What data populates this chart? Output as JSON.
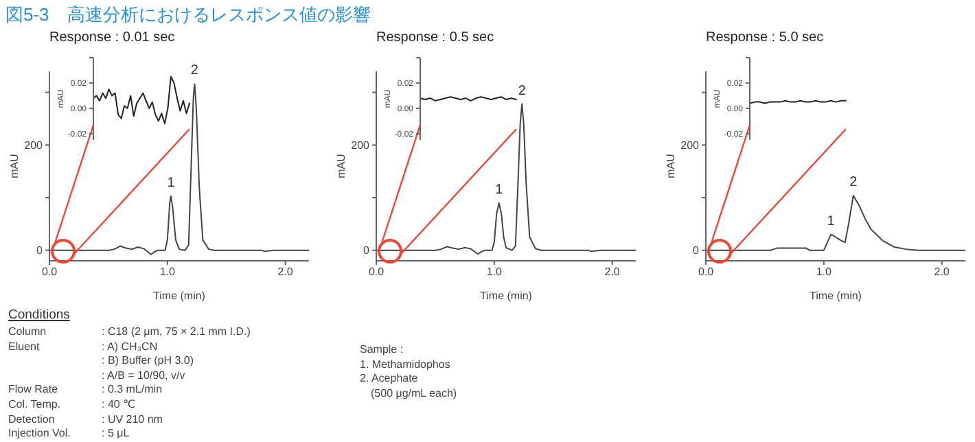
{
  "chart_data": [
    {
      "type": "other",
      "title": "図5-3　高速分析におけるレスポンス値の影響"
    },
    {
      "type": "line",
      "title": "Response : 0.01 sec",
      "xlabel": "Time (min)",
      "ylabel": "mAU",
      "xlim": [
        0,
        2.2
      ],
      "xticks": [
        {
          "value": 0,
          "label": "0.0"
        },
        {
          "value": 1,
          "label": "1.0"
        },
        {
          "value": 2,
          "label": "2.0"
        }
      ],
      "ylim": [
        -20,
        340
      ],
      "yticks": [
        0,
        {
          "value": 100,
          "label": null
        },
        200,
        {
          "value": 300,
          "label": null
        }
      ],
      "marker": "none",
      "x": [
        0,
        0.5,
        0.55,
        0.6,
        0.65,
        0.7,
        0.75,
        0.8,
        0.83,
        0.86,
        0.89,
        0.92,
        0.98,
        1.0,
        1.02,
        1.03,
        1.045,
        1.07,
        1.1,
        1.15,
        1.18,
        1.2,
        1.22,
        1.23,
        1.245,
        1.27,
        1.3,
        1.35,
        1.4,
        1.8,
        1.82,
        1.9,
        2.2
      ],
      "series": [
        {
          "color": "#444444",
          "values": [
            0,
            0,
            2,
            8,
            4,
            2,
            6,
            3,
            -2,
            -8,
            -3,
            0,
            0,
            20,
            90,
            103,
            80,
            20,
            2,
            0,
            10,
            150,
            290,
            316,
            270,
            120,
            20,
            2,
            0,
            0,
            -2,
            0,
            0
          ]
        }
      ],
      "annotations": [
        {
          "text": "1",
          "x": 1.03,
          "y": 103
        },
        {
          "text": "2",
          "x": 1.23,
          "y": 316
        }
      ]
    },
    {
      "type": "line",
      "ylabel": "mAU",
      "ylim": [
        -0.025,
        0.04
      ],
      "yticks": [
        {
          "value": 0.04,
          "label": null
        },
        0.02,
        {
          "value": 0,
          "label": "0.00"
        },
        -0.02
      ],
      "tick_labels": "y",
      "marker": "none",
      "categories": [
        null,
        null,
        null,
        null,
        null,
        null,
        null,
        null,
        null,
        null,
        null,
        null,
        null,
        null,
        null,
        null,
        null,
        null,
        null,
        null,
        null,
        null,
        null,
        null,
        null,
        null,
        null,
        null,
        null,
        null,
        null,
        null
      ],
      "series": [
        {
          "color": "#222222",
          "values": [
            0.008,
            0.01,
            0.006,
            0.012,
            0.008,
            0.015,
            0.01,
            0.012,
            -0.005,
            -0.008,
            0.002,
            0.0,
            0.01,
            -0.006,
            0.004,
            0.008,
            0.012,
            0.006,
            0.0,
            0.005,
            -0.005,
            -0.01,
            -0.004,
            -0.012,
            0.0,
            0.025,
            0.02,
            0.008,
            -0.002,
            0.006,
            -0.004,
            0.004
          ]
        }
      ]
    },
    {
      "type": "line",
      "title": "Response : 0.5 sec",
      "xlabel": "Time (min)",
      "ylabel": "mAU",
      "xlim": [
        0,
        2.2
      ],
      "xticks": [
        {
          "value": 0,
          "label": "0.0"
        },
        {
          "value": 1,
          "label": "1.0"
        },
        {
          "value": 2,
          "label": "2.0"
        }
      ],
      "ylim": [
        -20,
        340
      ],
      "yticks": [
        0,
        {
          "value": 100,
          "label": null
        },
        200,
        {
          "value": 300,
          "label": null
        }
      ],
      "marker": "none",
      "x": [
        0,
        0.5,
        0.55,
        0.6,
        0.65,
        0.7,
        0.75,
        0.8,
        0.83,
        0.86,
        0.89,
        0.92,
        0.98,
        1.0,
        1.02,
        1.04,
        1.06,
        1.08,
        1.1,
        1.15,
        1.18,
        1.2,
        1.22,
        1.235,
        1.25,
        1.27,
        1.3,
        1.35,
        1.4,
        1.8,
        1.82,
        1.9,
        2.2
      ],
      "series": [
        {
          "color": "#444444",
          "values": [
            0,
            0,
            2,
            7,
            4,
            2,
            5,
            3,
            -2,
            -7,
            -3,
            0,
            0,
            15,
            70,
            90,
            70,
            25,
            5,
            0,
            8,
            120,
            240,
            278,
            240,
            130,
            25,
            3,
            0,
            0,
            -2,
            0,
            0
          ]
        }
      ],
      "annotations": [
        {
          "text": "1",
          "x": 1.04,
          "y": 90
        },
        {
          "text": "2",
          "x": 1.235,
          "y": 278
        }
      ]
    },
    {
      "type": "line",
      "ylabel": "mAU",
      "ylim": [
        -0.025,
        0.04
      ],
      "yticks": [
        {
          "value": 0.04,
          "label": null
        },
        0.02,
        {
          "value": 0,
          "label": "0.00"
        },
        -0.02
      ],
      "tick_labels": "y",
      "marker": "none",
      "categories": [
        null,
        null,
        null,
        null,
        null,
        null,
        null,
        null,
        null,
        null,
        null,
        null,
        null,
        null,
        null,
        null,
        null,
        null,
        null,
        null
      ],
      "series": [
        {
          "color": "#222222",
          "values": [
            0.008,
            0.007,
            0.008,
            0.006,
            0.007,
            0.008,
            0.009,
            0.008,
            0.007,
            0.008,
            0.006,
            0.008,
            0.009,
            0.008,
            0.007,
            0.008,
            0.009,
            0.007,
            0.008,
            0.007
          ]
        }
      ]
    },
    {
      "type": "line",
      "title": "Response : 5.0 sec",
      "xlabel": "Time (min)",
      "ylabel": "mAU",
      "xlim": [
        0,
        2.2
      ],
      "xticks": [
        {
          "value": 0,
          "label": "0.0"
        },
        {
          "value": 1,
          "label": "1.0"
        },
        {
          "value": 2,
          "label": "2.0"
        }
      ],
      "ylim": [
        -20,
        340
      ],
      "yticks": [
        0,
        {
          "value": 100,
          "label": null
        },
        200,
        {
          "value": 300,
          "label": null
        }
      ],
      "marker": "none",
      "x": [
        0,
        0.55,
        0.6,
        0.85,
        0.88,
        1.0,
        1.03,
        1.06,
        1.1,
        1.15,
        1.18,
        1.21,
        1.25,
        1.3,
        1.35,
        1.4,
        1.5,
        1.6,
        1.7,
        1.8,
        2.2
      ],
      "series": [
        {
          "color": "#444444",
          "values": [
            0,
            0,
            4,
            4,
            0,
            0,
            15,
            30,
            25,
            18,
            15,
            50,
            104,
            85,
            60,
            40,
            18,
            6,
            2,
            0,
            0
          ]
        }
      ],
      "annotations": [
        {
          "text": "1",
          "x": 1.06,
          "y": 30
        },
        {
          "text": "2",
          "x": 1.25,
          "y": 104
        }
      ]
    },
    {
      "type": "line",
      "ylabel": "mAU",
      "ylim": [
        -0.025,
        0.04
      ],
      "yticks": [
        {
          "value": 0.04,
          "label": null
        },
        0.02,
        {
          "value": 0,
          "label": "0.00"
        },
        -0.02
      ],
      "tick_labels": "y",
      "marker": "none",
      "categories": [
        null,
        null,
        null,
        null,
        null,
        null,
        null,
        null,
        null,
        null,
        null,
        null,
        null,
        null,
        null,
        null,
        null,
        null,
        null,
        null
      ],
      "series": [
        {
          "color": "#222222",
          "values": [
            0.004,
            0.005,
            0.005,
            0.004,
            0.005,
            0.005,
            0.005,
            0.006,
            0.005,
            0.005,
            0.006,
            0.005,
            0.005,
            0.006,
            0.005,
            0.005,
            0.006,
            0.005,
            0.006,
            0.006
          ]
        }
      ]
    },
    {
      "type": "other",
      "title": "Conditions",
      "annotations": [
        "Column\t: C18 (2 μm, 75 × 2.1 mm I.D.)",
        "Eluent\t: A) CH₃CN",
        "\t: B) Buffer (pH 3.0)",
        "\t: A/B = 10/90, v/v",
        "Flow Rate\t: 0.3 mL/min",
        "Col. Temp.\t: 40 ℃",
        "Detection\t: UV 210 nm",
        "Injection Vol.\t: 5 μL"
      ]
    },
    {
      "type": "other",
      "annotations": [
        "Sample :",
        "1. Methamidophos",
        "2. Acephate",
        "　(500 μg/mL each)"
      ]
    }
  ]
}
